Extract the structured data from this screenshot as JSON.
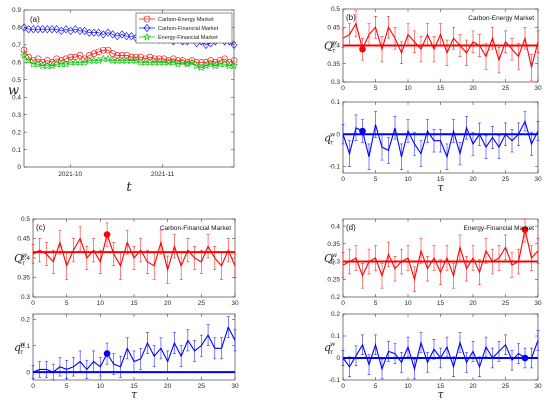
{
  "chart_data": [
    {
      "panel": "(a)",
      "type": "line",
      "xlabel": "t",
      "ylabel": "w",
      "x_tick_labels": [
        "2021-10",
        "2021-11"
      ],
      "ylim": [
        0,
        0.9
      ],
      "y_ticks": [
        "0",
        "0.1",
        "0.2",
        "0.3",
        "0.4",
        "0.5",
        "0.6",
        "0.7",
        "0.8",
        "0.9"
      ],
      "legend_position": "top-right",
      "series": [
        {
          "name": "Carbon-Energy Market",
          "color": "#ff0000",
          "marker": "circle",
          "values": [
            0.67,
            0.63,
            0.61,
            0.62,
            0.6,
            0.61,
            0.6,
            0.62,
            0.61,
            0.62,
            0.63,
            0.63,
            0.64,
            0.62,
            0.64,
            0.65,
            0.66,
            0.67,
            0.67,
            0.65,
            0.64,
            0.64,
            0.64,
            0.63,
            0.63,
            0.63,
            0.62,
            0.63,
            0.62,
            0.62,
            0.62,
            0.61,
            0.62,
            0.61,
            0.61,
            0.6,
            0.61,
            0.6,
            0.6,
            0.6,
            0.61,
            0.6,
            0.61,
            0.62,
            0.6,
            0.61
          ]
        },
        {
          "name": "Carbon-Financial Market",
          "color": "#0000ff",
          "marker": "diamond",
          "values": [
            0.8,
            0.79,
            0.79,
            0.79,
            0.79,
            0.79,
            0.79,
            0.79,
            0.78,
            0.79,
            0.78,
            0.79,
            0.78,
            0.78,
            0.77,
            0.77,
            0.77,
            0.76,
            0.77,
            0.76,
            0.75,
            0.76,
            0.75,
            0.75,
            0.74,
            0.75,
            0.74,
            0.74,
            0.74,
            0.73,
            0.73,
            0.73,
            0.72,
            0.73,
            0.72,
            0.72,
            0.73,
            0.71,
            0.72,
            0.7,
            0.71,
            0.72,
            0.75,
            0.72,
            0.72,
            0.7
          ]
        },
        {
          "name": "Energy-Financial Market",
          "color": "#00c000",
          "marker": "star",
          "values": [
            0.64,
            0.61,
            0.59,
            0.59,
            0.58,
            0.58,
            0.58,
            0.59,
            0.59,
            0.59,
            0.6,
            0.6,
            0.6,
            0.6,
            0.61,
            0.61,
            0.61,
            0.62,
            0.62,
            0.61,
            0.61,
            0.61,
            0.61,
            0.61,
            0.61,
            0.6,
            0.6,
            0.6,
            0.6,
            0.6,
            0.6,
            0.6,
            0.6,
            0.59,
            0.6,
            0.59,
            0.6,
            0.58,
            0.57,
            0.58,
            0.59,
            0.58,
            0.59,
            0.59,
            0.58,
            0.58
          ]
        }
      ]
    },
    {
      "panel": "(b)",
      "market": "Carbon-Energy Market",
      "type": "line",
      "xlabel": "τ",
      "x_ticks": [
        0,
        5,
        10,
        15,
        20,
        25,
        30
      ],
      "xlim": [
        0,
        30
      ],
      "top": {
        "ylabel": "Q",
        "y_ticks": [
          "0.3",
          "0.35",
          "0.4",
          "0.45",
          "0.5"
        ],
        "ylim": [
          0.3,
          0.5
        ],
        "baseline": 0.4,
        "highlight_tau": 3,
        "values": [
          0.42,
          0.43,
          0.46,
          0.39,
          0.43,
          0.45,
          0.39,
          0.45,
          0.42,
          0.38,
          0.43,
          0.41,
          0.39,
          0.43,
          0.39,
          0.43,
          0.38,
          0.42,
          0.4,
          0.38,
          0.41,
          0.4,
          0.37,
          0.42,
          0.36,
          0.41,
          0.39,
          0.37,
          0.42,
          0.34,
          0.41
        ],
        "errors": [
          0.025,
          0.03,
          0.035,
          0.03,
          0.03,
          0.03,
          0.035,
          0.03,
          0.03,
          0.03,
          0.03,
          0.03,
          0.035,
          0.03,
          0.035,
          0.03,
          0.035,
          0.03,
          0.03,
          0.035,
          0.03,
          0.03,
          0.035,
          0.03,
          0.035,
          0.03,
          0.03,
          0.035,
          0.03,
          0.035,
          0.03
        ]
      },
      "bottom": {
        "ylabel": "q",
        "y_ticks": [
          "-0.1",
          "0",
          "0.1"
        ],
        "ylim": [
          -0.12,
          0.1
        ],
        "baseline": 0,
        "highlight_tau": 3,
        "values": [
          0.0,
          -0.06,
          0.02,
          0.01,
          -0.07,
          0.03,
          -0.04,
          -0.05,
          0.02,
          -0.07,
          0.01,
          -0.03,
          -0.06,
          0.01,
          -0.02,
          -0.02,
          -0.07,
          0.01,
          -0.06,
          0.02,
          -0.03,
          0.0,
          -0.04,
          -0.01,
          -0.04,
          0.0,
          -0.02,
          0.0,
          0.04,
          -0.03,
          0.01
        ],
        "errors": [
          0.03,
          0.04,
          0.04,
          0.035,
          0.04,
          0.04,
          0.04,
          0.04,
          0.035,
          0.04,
          0.035,
          0.035,
          0.04,
          0.035,
          0.035,
          0.035,
          0.04,
          0.035,
          0.035,
          0.035,
          0.035,
          0.035,
          0.035,
          0.035,
          0.035,
          0.035,
          0.035,
          0.035,
          0.03,
          0.035,
          0.03
        ]
      }
    },
    {
      "panel": "(c)",
      "market": "Carbon-Financial Market",
      "type": "line",
      "xlabel": "τ",
      "x_ticks": [
        0,
        5,
        10,
        15,
        20,
        25,
        30
      ],
      "xlim": [
        0,
        30
      ],
      "top": {
        "ylabel": "Q",
        "y_ticks": [
          "0.3",
          "0.35",
          "0.4",
          "0.45",
          "0.5"
        ],
        "ylim": [
          0.3,
          0.5
        ],
        "baseline": 0.415,
        "highlight_tau": 11,
        "values": [
          0.41,
          0.42,
          0.41,
          0.39,
          0.44,
          0.38,
          0.42,
          0.45,
          0.4,
          0.42,
          0.39,
          0.46,
          0.41,
          0.38,
          0.44,
          0.4,
          0.42,
          0.39,
          0.38,
          0.44,
          0.37,
          0.43,
          0.38,
          0.42,
          0.4,
          0.39,
          0.43,
          0.4,
          0.38,
          0.42,
          0.38
        ],
        "errors": [
          0.025,
          0.03,
          0.03,
          0.03,
          0.03,
          0.035,
          0.03,
          0.03,
          0.03,
          0.03,
          0.03,
          0.03,
          0.03,
          0.035,
          0.03,
          0.03,
          0.03,
          0.03,
          0.035,
          0.03,
          0.035,
          0.03,
          0.035,
          0.03,
          0.03,
          0.03,
          0.03,
          0.03,
          0.035,
          0.03,
          0.03
        ]
      },
      "bottom": {
        "ylabel": "q",
        "y_ticks": [
          "0",
          "0.1",
          "0.2"
        ],
        "ylim": [
          -0.03,
          0.22
        ],
        "baseline": 0,
        "highlight_tau": 11,
        "values": [
          0.0,
          0.01,
          0.01,
          0.0,
          0.02,
          0.01,
          0.02,
          0.04,
          0.01,
          0.04,
          0.02,
          0.07,
          0.03,
          0.02,
          0.09,
          0.04,
          0.05,
          0.11,
          0.06,
          0.09,
          0.04,
          0.11,
          0.06,
          0.12,
          0.08,
          0.1,
          0.14,
          0.09,
          0.09,
          0.17,
          0.12
        ],
        "errors": [
          0.025,
          0.03,
          0.03,
          0.03,
          0.035,
          0.035,
          0.035,
          0.04,
          0.035,
          0.04,
          0.035,
          0.04,
          0.04,
          0.04,
          0.04,
          0.04,
          0.04,
          0.04,
          0.04,
          0.04,
          0.04,
          0.04,
          0.04,
          0.04,
          0.04,
          0.04,
          0.04,
          0.04,
          0.04,
          0.04,
          0.04
        ]
      }
    },
    {
      "panel": "(d)",
      "market": "Energy-Financial Market",
      "type": "line",
      "xlabel": "τ",
      "x_ticks": [
        0,
        5,
        10,
        15,
        20,
        25,
        30
      ],
      "xlim": [
        0,
        30
      ],
      "top": {
        "ylabel": "Q",
        "y_ticks": [
          "0.2",
          "0.25",
          "0.3",
          "0.35",
          "0.4"
        ],
        "ylim": [
          0.2,
          0.42
        ],
        "baseline": 0.3,
        "highlight_tau": 28,
        "values": [
          0.29,
          0.3,
          0.31,
          0.26,
          0.3,
          0.31,
          0.26,
          0.32,
          0.28,
          0.3,
          0.31,
          0.25,
          0.33,
          0.28,
          0.31,
          0.27,
          0.31,
          0.26,
          0.34,
          0.28,
          0.31,
          0.27,
          0.33,
          0.3,
          0.31,
          0.34,
          0.29,
          0.3,
          0.39,
          0.31,
          0.33
        ],
        "errors": [
          0.035,
          0.035,
          0.035,
          0.035,
          0.035,
          0.035,
          0.035,
          0.035,
          0.035,
          0.035,
          0.035,
          0.035,
          0.035,
          0.035,
          0.035,
          0.035,
          0.035,
          0.035,
          0.035,
          0.035,
          0.035,
          0.035,
          0.035,
          0.035,
          0.035,
          0.035,
          0.035,
          0.035,
          0.035,
          0.035,
          0.035
        ]
      },
      "bottom": {
        "ylabel": "q",
        "y_ticks": [
          "-0.1",
          "0",
          "0.1",
          "0.2"
        ],
        "ylim": [
          -0.1,
          0.2
        ],
        "baseline": 0,
        "highlight_tau": 28,
        "values": [
          0.0,
          -0.04,
          0.01,
          0.06,
          -0.03,
          0.06,
          -0.05,
          0.03,
          0.02,
          -0.02,
          0.05,
          -0.05,
          0.07,
          -0.02,
          0.04,
          0.0,
          0.05,
          -0.04,
          0.07,
          -0.02,
          0.03,
          -0.04,
          0.05,
          0.0,
          0.03,
          0.06,
          -0.01,
          0.02,
          0.0,
          0.0,
          0.08
        ],
        "errors": [
          0.035,
          0.045,
          0.045,
          0.045,
          0.045,
          0.045,
          0.045,
          0.045,
          0.045,
          0.045,
          0.045,
          0.045,
          0.045,
          0.045,
          0.045,
          0.045,
          0.045,
          0.045,
          0.045,
          0.045,
          0.045,
          0.045,
          0.045,
          0.045,
          0.045,
          0.045,
          0.045,
          0.045,
          0.045,
          0.045,
          0.045
        ]
      }
    }
  ]
}
